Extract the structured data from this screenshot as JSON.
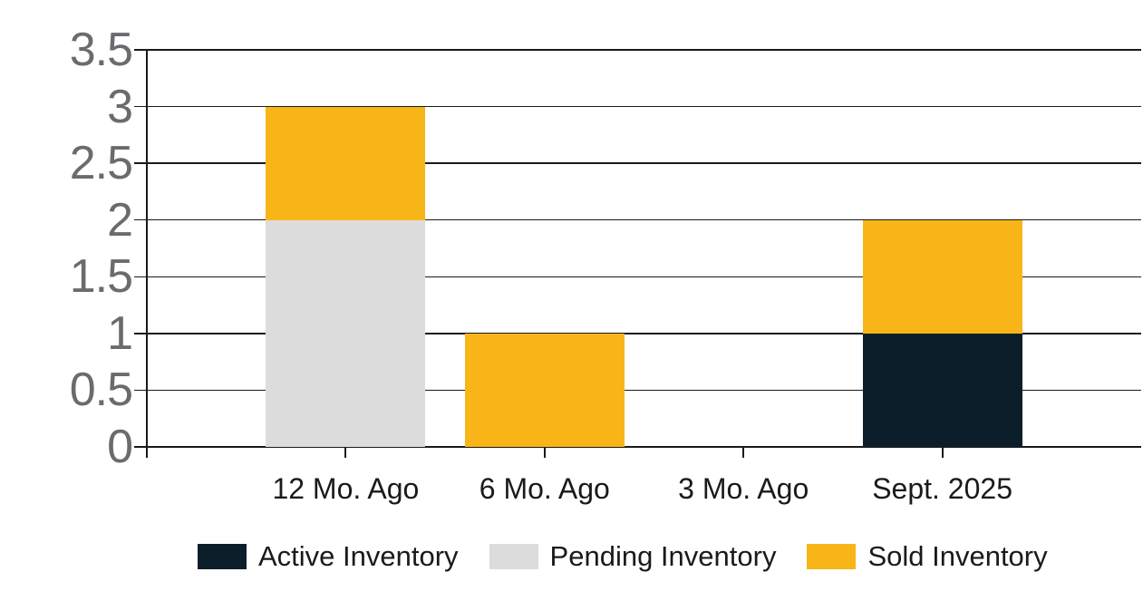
{
  "chart_data": {
    "type": "bar",
    "stacked": true,
    "title": "",
    "xlabel": "",
    "ylabel": "",
    "categories": [
      "12 Mo. Ago",
      "6 Mo. Ago",
      "3 Mo. Ago",
      "Sept. 2025"
    ],
    "series": [
      {
        "name": "Active Inventory",
        "color": "#0D1E2B",
        "values": [
          0,
          0,
          0,
          1
        ]
      },
      {
        "name": "Pending Inventory",
        "color": "#DCDCDC",
        "values": [
          2,
          0,
          0,
          0
        ]
      },
      {
        "name": "Sold Inventory",
        "color": "#F8B517",
        "values": [
          1,
          1,
          0,
          1
        ]
      }
    ],
    "ylim": [
      0,
      3.5
    ],
    "yticks": [
      "0",
      "0.5",
      "1",
      "1.5",
      "2",
      "2.5",
      "3",
      "3.5"
    ],
    "grid": true,
    "legend_position": "bottom"
  },
  "colors": {
    "background": "#FFFFFF",
    "grid_line": "#1A1A1A",
    "axis_line": "#1A1A1A",
    "y_tick_label": "#6A6B6E",
    "x_tick_label": "#1A1A1A",
    "legend_text": "#1A1A1A",
    "active_inventory": "#0D1E2B",
    "pending_inventory": "#DCDCDC",
    "sold_inventory": "#F8B517"
  }
}
